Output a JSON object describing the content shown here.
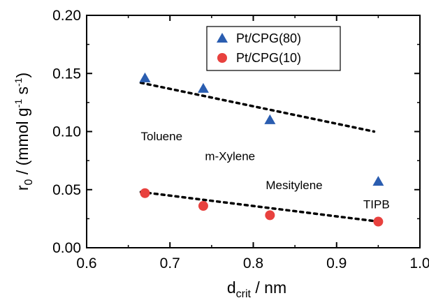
{
  "chart_data": {
    "type": "scatter",
    "xlabel": {
      "main": "d",
      "sub": "crit",
      "unit": " / nm"
    },
    "ylabel": {
      "main": "r",
      "sub": "0",
      "unit": " / (mmol g",
      "sup1": "-1",
      "mid": " s",
      "sup2": "-1",
      "end": ")"
    },
    "xlim": [
      0.6,
      1.0
    ],
    "ylim": [
      0.0,
      0.2
    ],
    "xticks": [
      0.6,
      0.7,
      0.8,
      0.9,
      1.0
    ],
    "xtick_labels": [
      "0.6",
      "0.7",
      "0.8",
      "0.9",
      "1.0"
    ],
    "yticks": [
      0.0,
      0.05,
      0.1,
      0.15,
      0.2
    ],
    "ytick_labels": [
      "0.00",
      "0.05",
      "0.10",
      "0.15",
      "0.20"
    ],
    "grid": false,
    "legend_position": "top-right",
    "series": [
      {
        "name": "Pt/CPG(80)",
        "marker": "triangle",
        "color": "#2a5db0",
        "x": [
          0.67,
          0.74,
          0.82,
          0.95
        ],
        "y": [
          0.146,
          0.137,
          0.11,
          0.057
        ],
        "fit": {
          "x": [
            0.665,
            0.945
          ],
          "y": [
            0.142,
            0.1
          ]
        }
      },
      {
        "name": "Pt/CPG(10)",
        "marker": "circle",
        "color": "#e8413e",
        "x": [
          0.67,
          0.74,
          0.82,
          0.95
        ],
        "y": [
          0.047,
          0.036,
          0.028,
          0.0225
        ],
        "fit": {
          "x": [
            0.665,
            0.945
          ],
          "y": [
            0.048,
            0.023
          ]
        }
      }
    ],
    "annotations": [
      {
        "text": "Toluene",
        "x": 0.665,
        "y": 0.0925
      },
      {
        "text": "m-Xylene",
        "x": 0.742,
        "y": 0.0755
      },
      {
        "text": "Mesitylene",
        "x": 0.815,
        "y": 0.0505
      },
      {
        "text": "TIPB",
        "x": 0.932,
        "y": 0.034
      }
    ]
  }
}
